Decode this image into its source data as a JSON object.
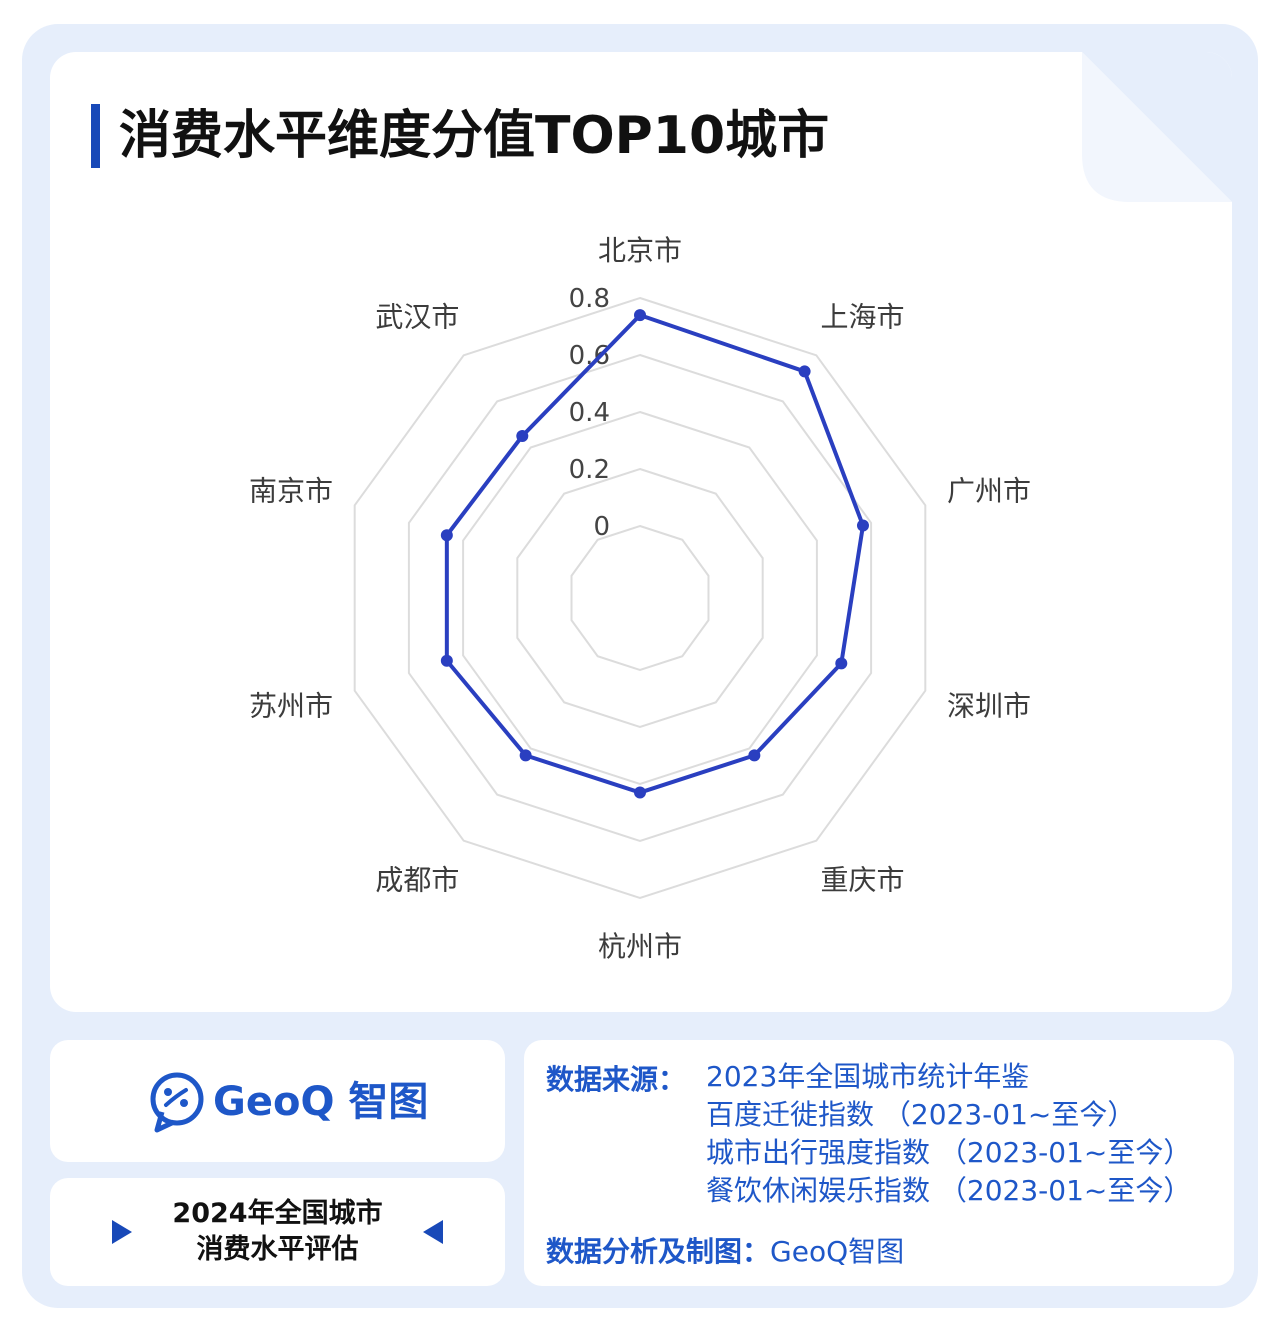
{
  "title": "消费水平维度分值TOP10城市",
  "colors": {
    "accent": "#1849b8",
    "series": "#2a3fc0",
    "grid": "#dcdcdc",
    "frame": "#e6eefb"
  },
  "chart_data": {
    "type": "radar",
    "categories": [
      "北京市",
      "上海市",
      "广州市",
      "深圳市",
      "重庆市",
      "杭州市",
      "成都市",
      "苏州市",
      "南京市",
      "武汉市"
    ],
    "series": [
      {
        "values": [
          0.74,
          0.73,
          0.57,
          0.49,
          0.43,
          0.43,
          0.43,
          0.46,
          0.46,
          0.45
        ]
      }
    ],
    "ticks": [
      "0",
      "0.2",
      "0.4",
      "0.6",
      "0.8"
    ],
    "rlim": [
      0,
      0.8
    ],
    "grid": true
  },
  "logo": {
    "brand": "GeoQ 智图"
  },
  "tag": {
    "line1": "2024年全国城市",
    "line2": "消费水平评估"
  },
  "sources": {
    "heading": "数据来源：",
    "items": [
      "2023年全国城市统计年鉴",
      "百度迁徙指数 （2023-01~至今）",
      "城市出行强度指数 （2023-01~至今）",
      "餐饮休闲娱乐指数 （2023-01~至今）"
    ],
    "footer_label": "数据分析及制图：",
    "footer_value": "GeoQ智图"
  }
}
